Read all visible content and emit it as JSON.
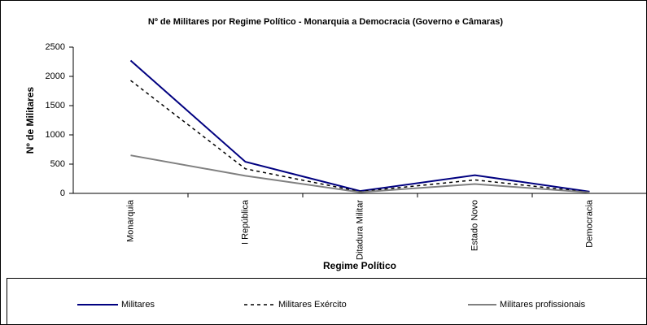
{
  "chart_data": {
    "type": "line",
    "title": "Nº de Militares por Regime Político - Monarquia a Democracia (Governo e Câmaras)",
    "x_label": "Regime Político",
    "y_label": "Nº de Militares",
    "categories": [
      "Monarquia",
      "I República",
      "Ditadura Militar",
      "Estado Novo",
      "Democracia"
    ],
    "series": [
      {
        "name": "Militares",
        "color": "#000080",
        "dash": "none",
        "values": [
          2270,
          540,
          40,
          310,
          30
        ]
      },
      {
        "name": "Militares Exército",
        "color": "#000000",
        "dash": "4,4",
        "values": [
          1930,
          420,
          30,
          230,
          20
        ]
      },
      {
        "name": "Militares profissionais",
        "color": "#808080",
        "dash": "none",
        "values": [
          650,
          300,
          20,
          160,
          15
        ]
      }
    ],
    "ylim": [
      0,
      2500
    ],
    "yticks": [
      0,
      500,
      1000,
      1500,
      2000,
      2500
    ],
    "grid": false,
    "legend": "bottom"
  }
}
